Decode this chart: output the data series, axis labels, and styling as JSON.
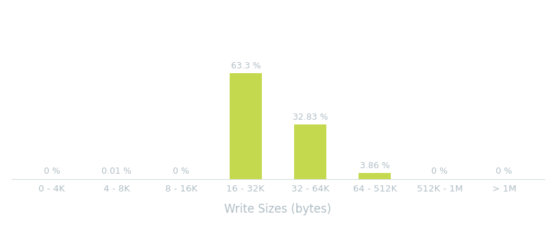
{
  "categories": [
    "0 - 4K",
    "4 - 8K",
    "8 - 16K",
    "16 - 32K",
    "32 - 64K",
    "64 - 512K",
    "512K - 1M",
    "> 1M"
  ],
  "values": [
    0.0,
    0.01,
    0.0,
    63.3,
    32.83,
    3.86,
    0.0,
    0.0
  ],
  "bar_color": "#c5d94e",
  "label_color": "#b0bec5",
  "xlabel": "Write Sizes (bytes)",
  "xlabel_fontsize": 12,
  "tick_label_fontsize": 9.5,
  "annotation_fontsize": 9.0,
  "background_color": "#ffffff",
  "ylim": [
    0,
    100
  ],
  "bar_width": 0.5,
  "spine_color": "#d5dde0"
}
